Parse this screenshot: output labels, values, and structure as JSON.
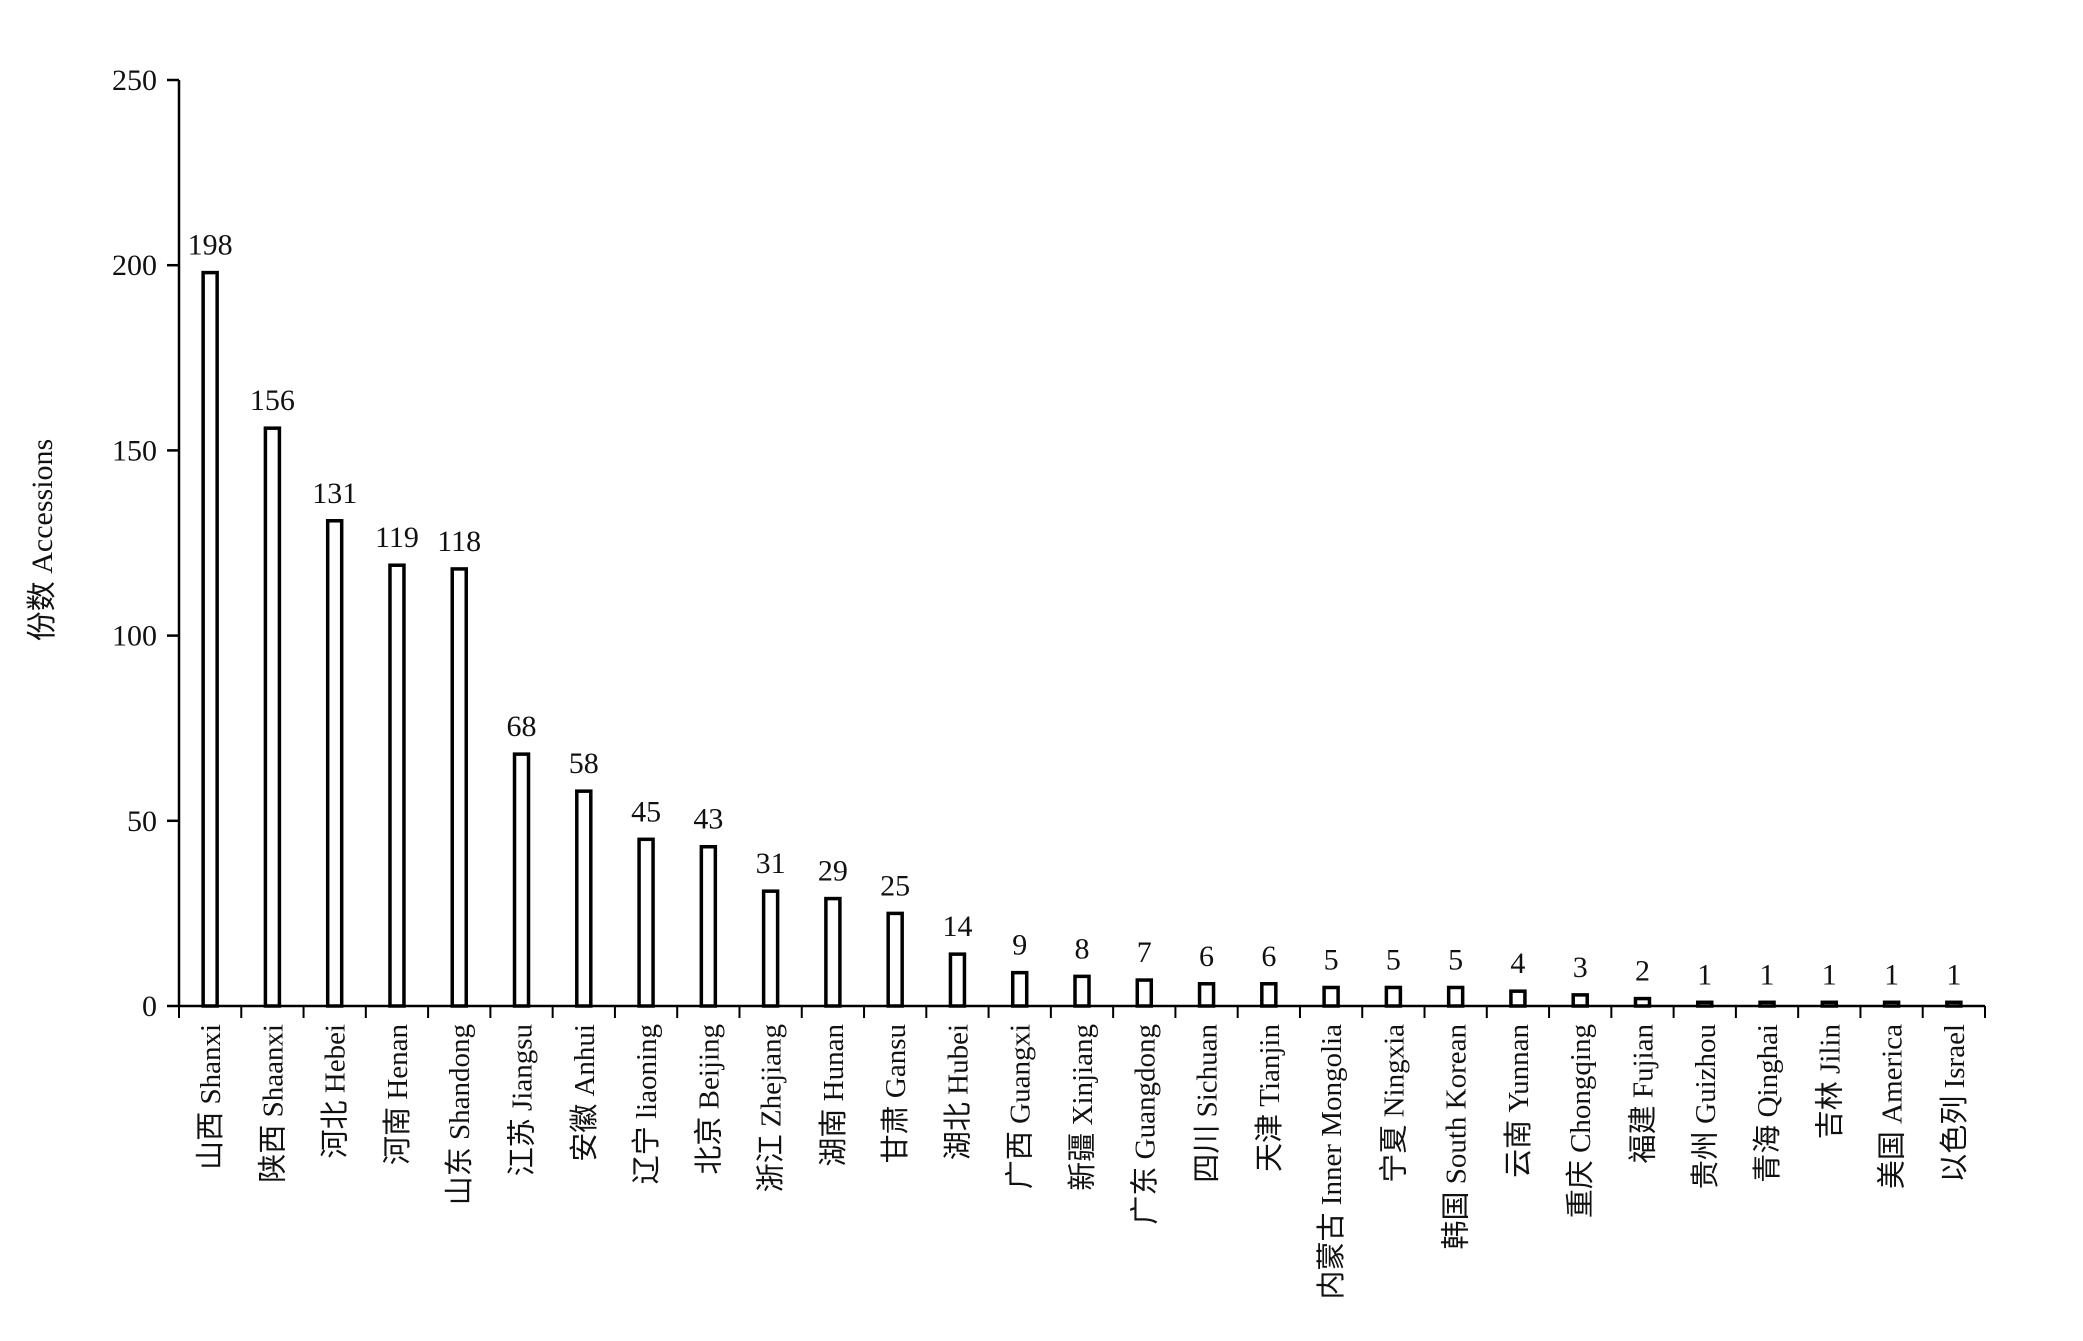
{
  "chart_data": {
    "type": "bar",
    "title": "",
    "xlabel": "",
    "ylabel": "份数 Accessions",
    "ylim": [
      0,
      250
    ],
    "yticks": [
      0,
      50,
      100,
      150,
      200,
      250
    ],
    "grid": false,
    "legend": "none",
    "bar_fill": "#ffffff",
    "bar_stroke": "#000000",
    "categories": [
      "山西 Shanxi",
      "陕西 Shaanxi",
      "河北 Hebei",
      "河南 Henan",
      "山东 Shandong",
      "江苏 Jiangsu",
      "安徽 Anhui",
      "辽宁 liaoning",
      "北京 Beijing",
      "浙江 Zhejiang",
      "湖南 Hunan",
      "甘肃 Gansu",
      "湖北 Hubei",
      "广西 Guangxi",
      "新疆 Xinjiang",
      "广东 Guangdong",
      "四川 Sichuan",
      "天津 Tianjin",
      "内蒙古 Inner Mongolia",
      "宁夏 Ningxia",
      "韩国 South Korean",
      "云南 Yunnan",
      "重庆 Chongqing",
      "福建 Fujian",
      "贵州 Guizhou",
      "青海 Qinghai",
      "吉林 Jilin",
      "美国 America",
      "以色列 Israel"
    ],
    "values": [
      198,
      156,
      131,
      119,
      118,
      68,
      58,
      45,
      43,
      31,
      29,
      25,
      14,
      9,
      8,
      7,
      6,
      6,
      5,
      5,
      5,
      4,
      3,
      2,
      1,
      1,
      1,
      1,
      1
    ]
  }
}
